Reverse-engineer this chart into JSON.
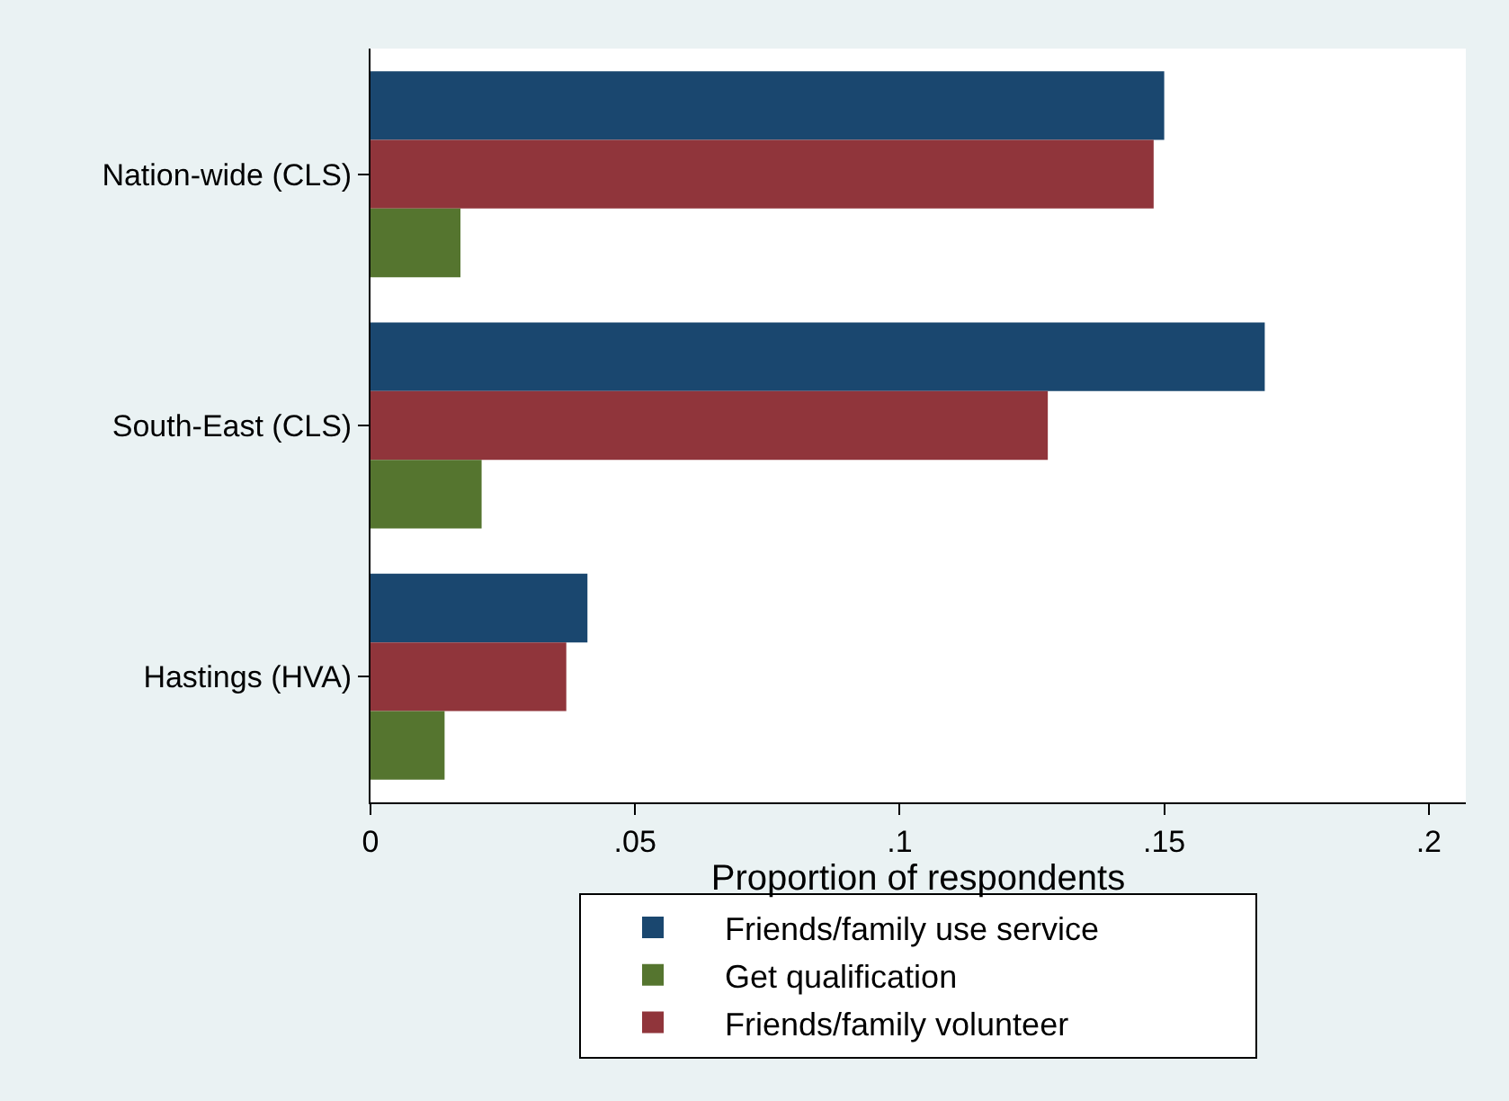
{
  "chart_data": {
    "type": "bar",
    "orientation": "horizontal",
    "categories": [
      "Nation-wide (CLS)",
      "South-East (CLS)",
      "Hastings (HVA)"
    ],
    "xlabel": "Proportion of respondents",
    "series": [
      {
        "name": "Friends/family use service",
        "color": "#1a476f",
        "values": [
          0.15,
          0.169,
          0.041
        ]
      },
      {
        "name": "Friends/family volunteer",
        "color": "#90353b",
        "values": [
          0.148,
          0.128,
          0.037
        ]
      },
      {
        "name": "Get qualification",
        "color": "#55752f",
        "values": [
          0.017,
          0.021,
          0.014
        ]
      }
    ],
    "xlim": [
      0,
      0.207
    ],
    "xticks": [
      0,
      {
        "value": 0.05,
        "label": ".05"
      },
      {
        "value": 0.1,
        "label": ".1"
      },
      {
        "value": 0.15,
        "label": ".15"
      },
      {
        "value": 0.2,
        "label": ".2"
      }
    ],
    "grid": false,
    "legend": "bottom"
  }
}
